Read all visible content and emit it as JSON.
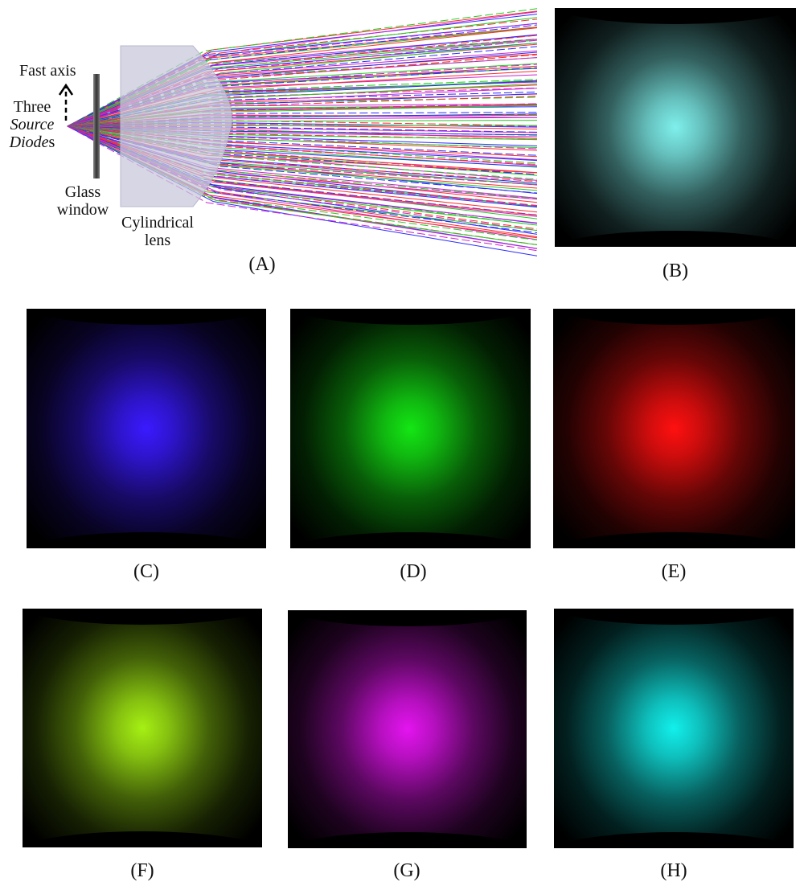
{
  "ray_diagram": {
    "fast_axis_label": "Fast axis",
    "source_line1": "Three",
    "source_line2": "Source",
    "source_line3_italic": "Diode",
    "source_line3_tail": "s",
    "glass_line1": "Glass",
    "glass_line2": "window",
    "lens_line1": "Cylindrical",
    "lens_line2": "lens",
    "ray_colors": [
      "#ff2a2a",
      "#22cc22",
      "#2a2aff",
      "#cc22cc"
    ]
  },
  "panels": [
    {
      "id": "A",
      "caption": "(A)"
    },
    {
      "id": "B",
      "caption": "(B)",
      "color": "#7ff0ec"
    },
    {
      "id": "C",
      "caption": "(C)",
      "color": "#3a1aff"
    },
    {
      "id": "D",
      "caption": "(D)",
      "color": "#14e614"
    },
    {
      "id": "E",
      "caption": "(E)",
      "color": "#ff1010"
    },
    {
      "id": "F",
      "caption": "(F)",
      "color": "#a6f014"
    },
    {
      "id": "G",
      "caption": "(G)",
      "color": "#e414f0"
    },
    {
      "id": "H",
      "caption": "(H)",
      "color": "#12f0ec"
    }
  ]
}
